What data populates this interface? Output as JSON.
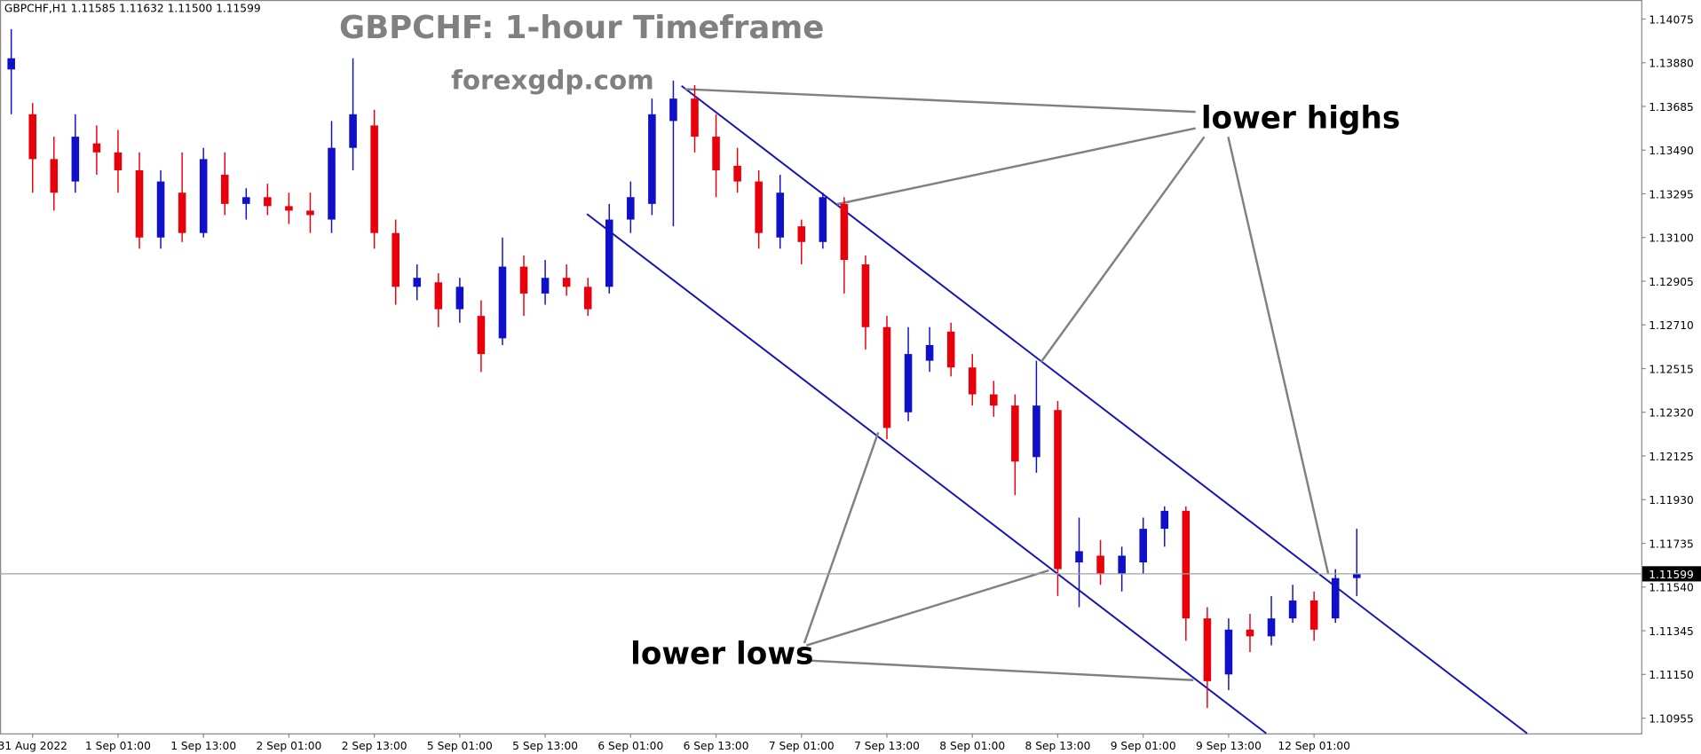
{
  "chart_data": {
    "type": "candlestick",
    "header": "GBPCHF,H1  1.11585 1.11632 1.11500 1.11599",
    "title": "GBPCHF: 1-hour Timeframe",
    "subtitle": "forexgdp.com",
    "annotations": [
      "lower highs",
      "lower lows"
    ],
    "categories": [
      null,
      "31 Aug 2022",
      null,
      null,
      null,
      "1 Sep 01:00",
      null,
      null,
      null,
      "1 Sep 13:00",
      null,
      null,
      null,
      "2 Sep 01:00",
      null,
      null,
      null,
      "2 Sep 13:00",
      null,
      null,
      null,
      "5 Sep 01:00",
      null,
      null,
      null,
      "5 Sep 13:00",
      null,
      null,
      null,
      "6 Sep 01:00",
      null,
      null,
      null,
      "6 Sep 13:00",
      null,
      null,
      null,
      "7 Sep 01:00",
      null,
      null,
      null,
      "7 Sep 13:00",
      null,
      null,
      null,
      "8 Sep 01:00",
      null,
      null,
      null,
      "8 Sep 13:00",
      null,
      null,
      null,
      "9 Sep 01:00",
      null,
      null,
      null,
      "9 Sep 13:00",
      null,
      null,
      null,
      "12 Sep 01:00",
      null,
      null
    ],
    "open": [
      1.1385,
      1.1365,
      1.1345,
      1.1335,
      1.1352,
      1.1348,
      1.134,
      1.131,
      1.133,
      1.1312,
      1.1338,
      1.1325,
      1.1328,
      1.1324,
      1.1322,
      1.1318,
      1.135,
      1.136,
      1.1312,
      1.1288,
      1.129,
      1.1278,
      1.1275,
      1.1265,
      1.1297,
      1.1285,
      1.1292,
      1.1288,
      1.1288,
      1.1318,
      1.1325,
      1.1362,
      1.1372,
      1.1355,
      1.1342,
      1.1335,
      1.131,
      1.1315,
      1.1308,
      1.1325,
      1.1298,
      1.127,
      1.1232,
      1.1255,
      1.1268,
      1.1252,
      1.124,
      1.1235,
      1.1212,
      1.1233,
      1.1165,
      1.1168,
      1.116,
      1.1165,
      1.118,
      1.1188,
      1.114,
      1.1115,
      1.1135,
      1.1132,
      1.114,
      1.1148,
      1.114,
      1.1158
    ],
    "high": [
      1.1403,
      1.137,
      1.1355,
      1.1365,
      1.136,
      1.1358,
      1.1348,
      1.134,
      1.1348,
      1.135,
      1.1348,
      1.1332,
      1.1334,
      1.133,
      1.133,
      1.1362,
      1.139,
      1.1367,
      1.1318,
      1.1298,
      1.1294,
      1.1292,
      1.1282,
      1.131,
      1.1302,
      1.13,
      1.1298,
      1.1292,
      1.1325,
      1.1335,
      1.1372,
      1.138,
      1.1378,
      1.1365,
      1.135,
      1.134,
      1.1338,
      1.1318,
      1.133,
      1.1328,
      1.1302,
      1.1275,
      1.127,
      1.127,
      1.1272,
      1.1258,
      1.1246,
      1.124,
      1.1255,
      1.1237,
      1.1185,
      1.1175,
      1.1172,
      1.1185,
      1.119,
      1.119,
      1.1145,
      1.114,
      1.1142,
      1.115,
      1.1155,
      1.1152,
      1.1162,
      1.118
    ],
    "low": [
      1.1365,
      1.133,
      1.1322,
      1.133,
      1.1338,
      1.133,
      1.1305,
      1.1305,
      1.1308,
      1.131,
      1.132,
      1.1318,
      1.132,
      1.1316,
      1.1312,
      1.1312,
      1.134,
      1.1305,
      1.128,
      1.1282,
      1.127,
      1.1272,
      1.125,
      1.1262,
      1.1275,
      1.128,
      1.1284,
      1.1275,
      1.1285,
      1.1312,
      1.132,
      1.1315,
      1.1348,
      1.1328,
      1.133,
      1.1305,
      1.1305,
      1.1298,
      1.1305,
      1.1285,
      1.126,
      1.122,
      1.1228,
      1.125,
      1.1248,
      1.1235,
      1.123,
      1.1195,
      1.1205,
      1.115,
      1.1145,
      1.1155,
      1.1152,
      1.116,
      1.1172,
      1.113,
      1.11,
      1.1108,
      1.1125,
      1.1128,
      1.1138,
      1.113,
      1.1138,
      1.115
    ],
    "close": [
      1.139,
      1.1345,
      1.133,
      1.1355,
      1.1348,
      1.134,
      1.131,
      1.1335,
      1.1312,
      1.1345,
      1.1325,
      1.1328,
      1.1324,
      1.1322,
      1.132,
      1.135,
      1.1365,
      1.1312,
      1.1288,
      1.1292,
      1.1278,
      1.1288,
      1.1258,
      1.1297,
      1.1285,
      1.1292,
      1.1288,
      1.1278,
      1.1318,
      1.1328,
      1.1365,
      1.1372,
      1.1355,
      1.134,
      1.1335,
      1.1312,
      1.133,
      1.1308,
      1.1328,
      1.13,
      1.127,
      1.1225,
      1.1258,
      1.1262,
      1.1252,
      1.124,
      1.1235,
      1.121,
      1.1235,
      1.1162,
      1.117,
      1.116,
      1.1168,
      1.118,
      1.1188,
      1.114,
      1.1112,
      1.1135,
      1.1132,
      1.114,
      1.1148,
      1.1135,
      1.1158,
      1.116
    ],
    "up_color": "#1010c8",
    "down_color": "#e8000b",
    "current_price": {
      "value": 1.11599,
      "label": "1.11599"
    },
    "ylim": [
      1.10887,
      1.1416
    ],
    "yticks": [
      1.14075,
      {
        "value": 1.1388,
        "label": "1.13880"
      },
      1.13685,
      {
        "value": 1.1349,
        "label": "1.13490"
      },
      1.13295,
      {
        "value": 1.131,
        "label": "1.13100"
      },
      1.12905,
      {
        "value": 1.1271,
        "label": "1.12710"
      },
      1.12515,
      {
        "value": 1.1232,
        "label": "1.12320"
      },
      1.12125,
      {
        "value": 1.1193,
        "label": "1.11930"
      },
      1.11735,
      {
        "value": 1.1154,
        "label": "1.11540"
      },
      1.11345,
      {
        "value": 1.1115,
        "label": "1.11150"
      },
      1.10955
    ],
    "grid": false
  }
}
